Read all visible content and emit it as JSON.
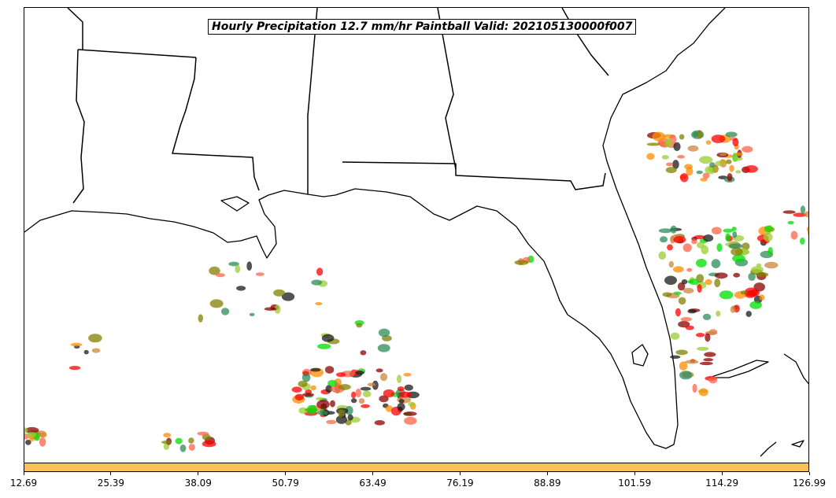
{
  "map": {
    "title": "Hourly Precipitation 12.7 mm/hr Paintball Valid: 202105130000f007",
    "region": "Gulf of Mexico and southeastern United States",
    "land_color": "#ffffff",
    "water_color": "#ffffff",
    "boundary_color": "#000000",
    "member_colors": [
      "#ff0000",
      "#ff8c00",
      "#00dd00",
      "#8b0000",
      "#1a1a1a",
      "#808000",
      "#ff6347",
      "#2e8b57",
      "#cd853f",
      "#9acd32"
    ]
  },
  "colorbar": {
    "fill_color": "#ffbe5c",
    "ticks": [
      "12.69",
      "25.39",
      "38.09",
      "50.79",
      "63.49",
      "76.19",
      "88.89",
      "101.59",
      "114.29",
      "126.99"
    ]
  }
}
